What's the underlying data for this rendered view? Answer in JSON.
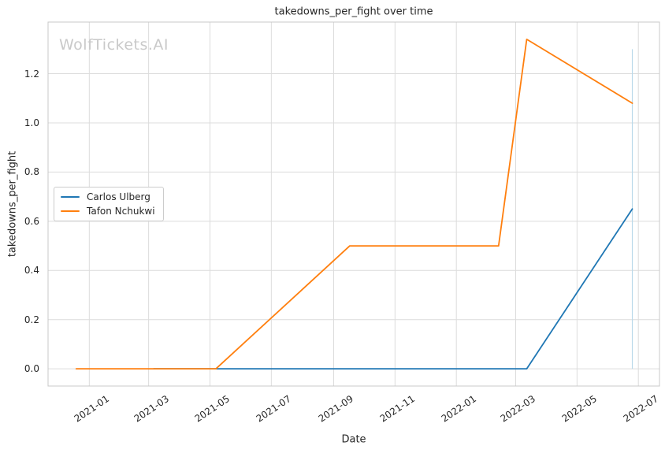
{
  "title": "takedowns_per_fight over time",
  "watermark": "WolfTickets.AI",
  "legend": {
    "items": [
      {
        "label": "Carlos Ulberg",
        "color": "#1f77b4"
      },
      {
        "label": "Tafon Nchukwi",
        "color": "#ff7f0e"
      }
    ]
  },
  "chart_data": {
    "type": "line",
    "title": "takedowns_per_fight over time",
    "xlabel": "Date",
    "ylabel": "takedowns_per_fight",
    "grid": true,
    "legend_position": "center-left",
    "x_range": [
      "2020-11-21",
      "2022-07-22"
    ],
    "y_range": [
      -0.07,
      1.41
    ],
    "x_ticks": [
      "2021-01",
      "2021-03",
      "2021-05",
      "2021-07",
      "2021-09",
      "2021-11",
      "2022-01",
      "2022-03",
      "2022-05",
      "2022-07"
    ],
    "y_ticks": [
      "0.0",
      "0.2",
      "0.4",
      "0.6",
      "0.8",
      "1.0",
      "1.2"
    ],
    "series": [
      {
        "name": "Carlos Ulberg",
        "color": "#1f77b4",
        "points": [
          [
            "2021-03-06",
            0.0
          ],
          [
            "2022-03-12",
            0.0
          ],
          [
            "2022-06-25",
            0.65
          ]
        ]
      },
      {
        "name": "Tafon Nchukwi",
        "color": "#ff7f0e",
        "points": [
          [
            "2020-12-19",
            0.0
          ],
          [
            "2021-05-07",
            0.0
          ],
          [
            "2021-09-17",
            0.5
          ],
          [
            "2022-02-12",
            0.5
          ],
          [
            "2022-03-12",
            1.34
          ],
          [
            "2022-06-25",
            1.08
          ]
        ]
      }
    ],
    "event_line": {
      "date": "2022-06-25",
      "y_from": 0.0,
      "y_to": 1.3,
      "color": "#b9d9ea"
    }
  }
}
